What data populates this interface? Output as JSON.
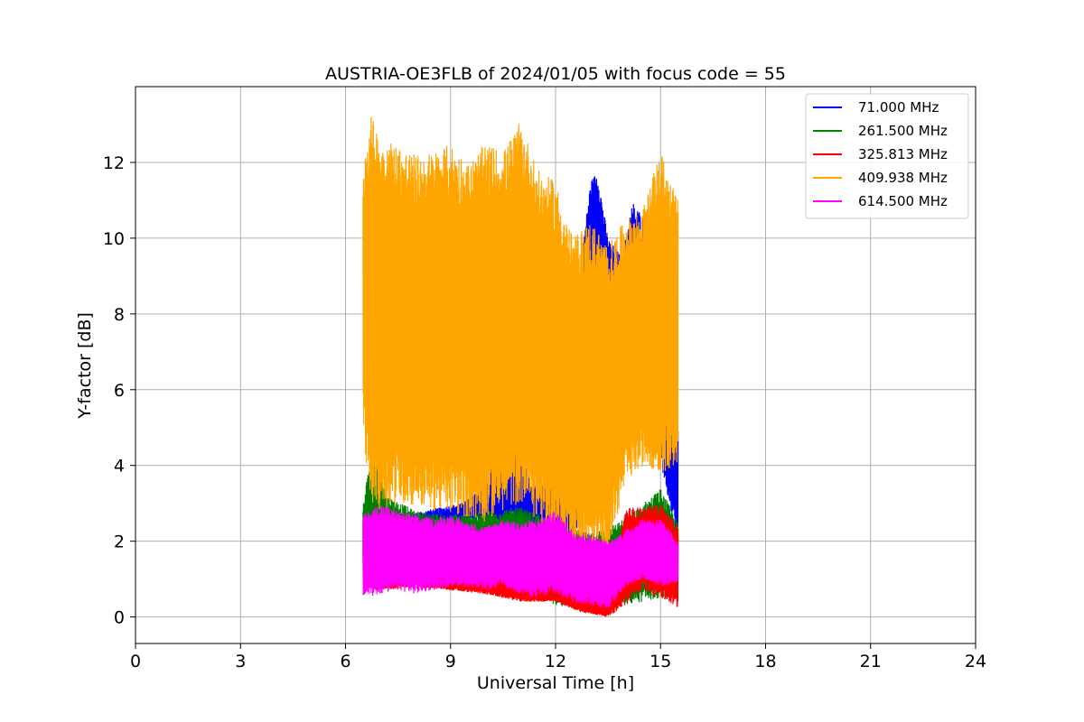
{
  "chart_data": {
    "type": "line",
    "title": "AUSTRIA-OE3FLB of 2024/01/05 with focus code = 55",
    "xlabel": "Universal Time [h]",
    "ylabel": "Y-factor [dB]",
    "xlim": [
      0,
      24
    ],
    "ylim": [
      -0.7,
      14.0
    ],
    "x_ticks": [
      0,
      3,
      6,
      9,
      12,
      15,
      18,
      21,
      24
    ],
    "y_ticks": [
      0,
      2,
      4,
      6,
      8,
      10,
      12
    ],
    "grid": true,
    "legend_position": "top-right",
    "series": [
      {
        "name": "71.000 MHz",
        "color": "#0000ff",
        "x": [
          6.5,
          9.3,
          9.6,
          10.0,
          10.4,
          10.8,
          11.3,
          12.0,
          12.5,
          12.8,
          13.0,
          13.2,
          13.5,
          13.9,
          14.2,
          14.6,
          15.0,
          15.5
        ],
        "low": [
          1.0,
          2.2,
          2.6,
          2.5,
          2.0,
          2.5,
          2.2,
          1.2,
          0.2,
          6.5,
          8.5,
          8.0,
          7.5,
          8.0,
          5.5,
          5.0,
          4.0,
          2.0
        ],
        "high": [
          2.5,
          3.0,
          3.2,
          3.5,
          5.0,
          5.5,
          3.5,
          3.5,
          8.0,
          10.0,
          11.5,
          11.8,
          10.0,
          9.5,
          11.0,
          10.5,
          9.5,
          5.0
        ]
      },
      {
        "name": "261.500 MHz",
        "color": "#008000",
        "x": [
          6.5,
          6.8,
          7.2,
          8.0,
          9.0,
          10.0,
          11.0,
          12.0,
          13.0,
          14.0,
          15.0,
          15.5
        ],
        "low": [
          1.0,
          1.2,
          1.0,
          0.9,
          0.8,
          0.8,
          0.6,
          0.3,
          0.1,
          0.3,
          0.5,
          0.4
        ],
        "high": [
          3.0,
          4.8,
          3.2,
          2.8,
          2.7,
          2.8,
          2.9,
          2.5,
          2.2,
          2.6,
          3.4,
          2.5
        ]
      },
      {
        "name": "325.813 MHz",
        "color": "#ff0000",
        "x": [
          6.5,
          7.0,
          8.0,
          9.0,
          10.0,
          11.0,
          12.0,
          12.8,
          13.5,
          14.0,
          14.5,
          15.0,
          15.5
        ],
        "low": [
          0.8,
          0.7,
          0.8,
          0.7,
          0.6,
          0.4,
          0.4,
          0.1,
          0.0,
          0.3,
          0.7,
          0.5,
          0.2
        ],
        "high": [
          2.0,
          1.3,
          1.3,
          1.2,
          1.2,
          1.0,
          0.8,
          0.6,
          0.5,
          2.9,
          2.9,
          3.0,
          2.4
        ]
      },
      {
        "name": "409.938 MHz",
        "color": "#ffa500",
        "x": [
          6.5,
          6.7,
          7.0,
          7.5,
          8.0,
          8.5,
          9.0,
          9.5,
          10.0,
          10.5,
          11.0,
          11.5,
          12.0,
          12.5,
          13.0,
          13.5,
          14.0,
          14.5,
          15.0,
          15.5
        ],
        "low": [
          5.0,
          3.0,
          2.8,
          3.0,
          2.9,
          2.8,
          2.7,
          2.6,
          2.5,
          2.8,
          3.0,
          2.5,
          2.0,
          1.8,
          1.6,
          1.7,
          3.5,
          4.0,
          3.8,
          4.0
        ],
        "high": [
          12.0,
          13.3,
          12.7,
          12.5,
          12.2,
          12.3,
          12.5,
          12.0,
          12.5,
          12.3,
          13.1,
          11.8,
          11.5,
          10.0,
          10.5,
          9.8,
          10.5,
          10.8,
          12.3,
          11.0
        ]
      },
      {
        "name": "614.500 MHz",
        "color": "#ff00ff",
        "x": [
          6.5,
          7.0,
          7.5,
          8.0,
          8.5,
          9.0,
          9.5,
          10.0,
          10.5,
          11.0,
          11.5,
          12.0,
          12.5,
          13.0,
          13.5,
          14.0,
          14.5,
          15.0,
          15.5
        ],
        "low": [
          0.5,
          0.6,
          0.7,
          0.6,
          0.7,
          0.8,
          0.8,
          0.7,
          0.8,
          0.6,
          0.5,
          0.6,
          0.4,
          0.3,
          0.2,
          0.8,
          1.0,
          0.8,
          0.9
        ],
        "high": [
          2.7,
          3.0,
          2.8,
          2.7,
          2.6,
          2.7,
          2.5,
          2.4,
          2.6,
          2.5,
          2.6,
          2.8,
          2.3,
          2.2,
          2.0,
          2.3,
          2.6,
          2.6,
          2.0
        ]
      }
    ]
  }
}
